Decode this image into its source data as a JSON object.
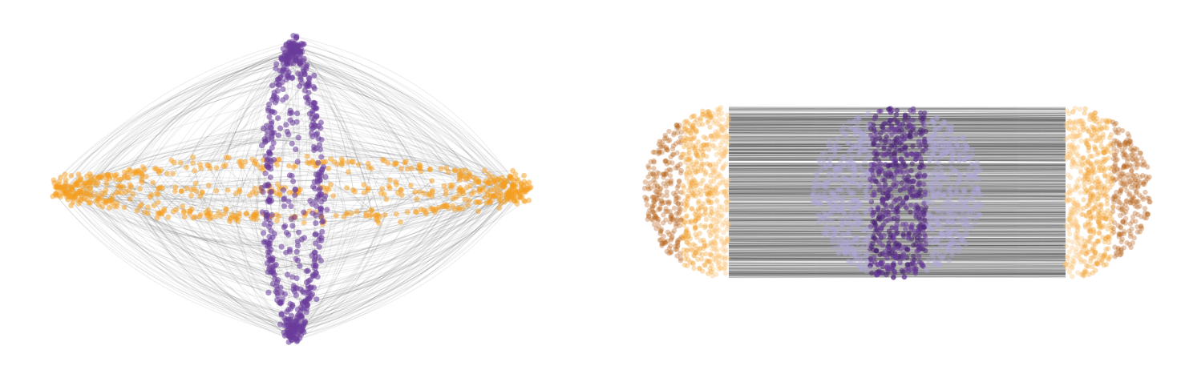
{
  "figure": {
    "panels": [
      {
        "id": "left",
        "kind": "4d-hyperparameter-matching",
        "sources": {
          "shape": "horizontal-ring",
          "color": "#f59d1e",
          "count": 700
        },
        "targets": {
          "shape": "vertical-ring",
          "color": "#6a3d9a",
          "count": 600
        },
        "links": {
          "color": "#333333",
          "count": 600
        }
      },
      {
        "id": "right",
        "kind": "cylinder-split-matching",
        "sources": {
          "shape": "half-discs",
          "colors": [
            "#b8651e",
            "#f0a030",
            "#f8c070"
          ],
          "count": 1500
        },
        "targets": {
          "shape": "disc",
          "colors": [
            "#b0a8d8",
            "#6a3d9a",
            "#4b2575"
          ],
          "count": 1400
        },
        "links": {
          "color": "#222222",
          "count": 900
        }
      }
    ]
  }
}
